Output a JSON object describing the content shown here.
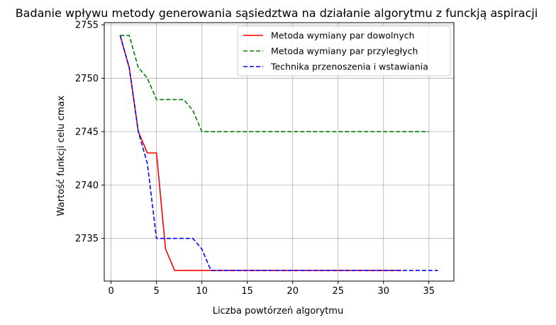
{
  "chart_data": {
    "type": "line",
    "title": "Badanie wpływu metody generowania sąsiedztwa na działanie algorytmu z funckją aspiracji",
    "xlabel": "Liczba powtórzeń algorytmu",
    "ylabel": "Wartość funkcji celu cmax",
    "xlim": [
      -0.75,
      37.75
    ],
    "ylim": [
      2731,
      2755.2
    ],
    "xticks": [
      0,
      5,
      10,
      15,
      20,
      25,
      30,
      35
    ],
    "yticks": [
      2735,
      2740,
      2745,
      2750,
      2755
    ],
    "grid": true,
    "legend_position": "upper right",
    "series": [
      {
        "name": "Metoda wymiany par dowolnych",
        "color": "#ff0000",
        "style": "solid",
        "x": [
          1,
          2,
          3,
          4,
          5,
          6,
          7,
          8,
          9,
          10,
          11,
          12,
          13,
          14,
          15,
          16,
          17,
          18,
          19,
          20,
          21,
          22,
          23,
          24,
          25,
          26,
          27,
          28,
          29,
          30,
          31,
          32
        ],
        "y": [
          2754,
          2751,
          2745,
          2743,
          2743,
          2734,
          2732,
          2732,
          2732,
          2732,
          2732,
          2732,
          2732,
          2732,
          2732,
          2732,
          2732,
          2732,
          2732,
          2732,
          2732,
          2732,
          2732,
          2732,
          2732,
          2732,
          2732,
          2732,
          2732,
          2732,
          2732,
          2732
        ]
      },
      {
        "name": "Metoda wymiany par przyległych",
        "color": "#008000",
        "style": "dashed",
        "x": [
          1,
          2,
          3,
          4,
          5,
          6,
          7,
          8,
          9,
          10,
          11,
          12,
          13,
          14,
          15,
          16,
          17,
          18,
          19,
          20,
          21,
          22,
          23,
          24,
          25,
          26,
          27,
          28,
          29,
          30,
          31,
          32,
          33,
          34,
          35
        ],
        "y": [
          2754,
          2754,
          2751,
          2750,
          2748,
          2748,
          2748,
          2748,
          2747,
          2745,
          2745,
          2745,
          2745,
          2745,
          2745,
          2745,
          2745,
          2745,
          2745,
          2745,
          2745,
          2745,
          2745,
          2745,
          2745,
          2745,
          2745,
          2745,
          2745,
          2745,
          2745,
          2745,
          2745,
          2745,
          2745
        ]
      },
      {
        "name": "Technika przenoszenia i wstawiania",
        "color": "#0000ff",
        "style": "dashed",
        "x": [
          1,
          2,
          3,
          4,
          5,
          6,
          7,
          8,
          9,
          10,
          11,
          12,
          13,
          14,
          15,
          16,
          17,
          18,
          19,
          20,
          21,
          22,
          23,
          24,
          25,
          26,
          27,
          28,
          29,
          30,
          31,
          32,
          33,
          34,
          35,
          36
        ],
        "y": [
          2754,
          2751,
          2745,
          2742,
          2735,
          2735,
          2735,
          2735,
          2735,
          2734,
          2732,
          2732,
          2732,
          2732,
          2732,
          2732,
          2732,
          2732,
          2732,
          2732,
          2732,
          2732,
          2732,
          2732,
          2732,
          2732,
          2732,
          2732,
          2732,
          2732,
          2732,
          2732,
          2732,
          2732,
          2732,
          2732
        ]
      }
    ]
  }
}
